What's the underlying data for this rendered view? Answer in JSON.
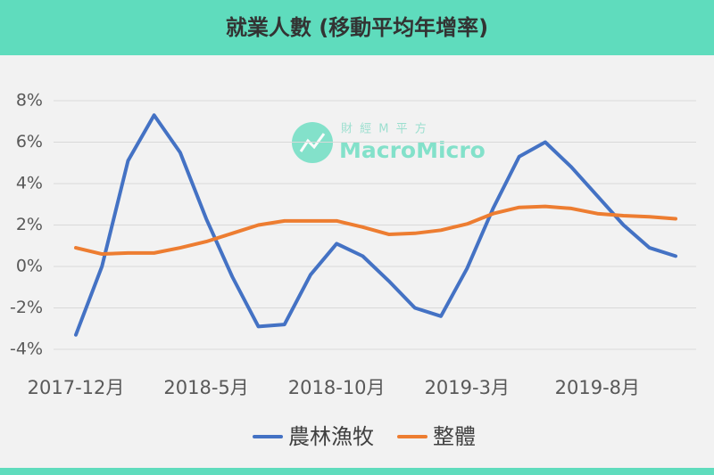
{
  "chart_data": {
    "type": "line",
    "title": "就業人數 (移動平均年增率)",
    "watermark": {
      "subtitle": "財 經 M 平 方",
      "brand": "MacroMicro"
    },
    "categories": [
      "2017-12月",
      null,
      null,
      null,
      null,
      "2018-5月",
      null,
      null,
      null,
      null,
      "2018-10月",
      null,
      null,
      null,
      null,
      "2019-3月",
      null,
      null,
      null,
      null,
      "2019-8月",
      null,
      null,
      null
    ],
    "series": [
      {
        "name": "農林漁牧",
        "color": "#4472c4",
        "values": [
          -3.3,
          0.0,
          5.1,
          7.3,
          5.5,
          2.3,
          -0.5,
          -2.9,
          -2.8,
          -0.4,
          1.1,
          0.5,
          -0.7,
          -2.0,
          -2.4,
          -0.1,
          2.8,
          5.3,
          6.0,
          4.8,
          3.4,
          2.0,
          0.9,
          0.5
        ]
      },
      {
        "name": "整體",
        "color": "#ed7d31",
        "values": [
          0.9,
          0.6,
          0.65,
          0.65,
          0.9,
          1.2,
          1.6,
          2.0,
          2.2,
          2.2,
          2.2,
          1.9,
          1.55,
          1.6,
          1.75,
          2.05,
          2.55,
          2.85,
          2.9,
          2.8,
          2.55,
          2.45,
          2.4,
          2.3
        ]
      }
    ],
    "ylim": [
      -4,
      8
    ],
    "yticks": [
      {
        "value": -4,
        "label": "-4%"
      },
      {
        "value": -2,
        "label": "-2%"
      },
      {
        "value": 0,
        "label": "0%"
      },
      {
        "value": 2,
        "label": "2%"
      },
      {
        "value": 4,
        "label": "4%"
      },
      {
        "value": 6,
        "label": "6%"
      },
      {
        "value": 8,
        "label": "8%"
      }
    ],
    "grid": true,
    "legend": "bottom"
  }
}
